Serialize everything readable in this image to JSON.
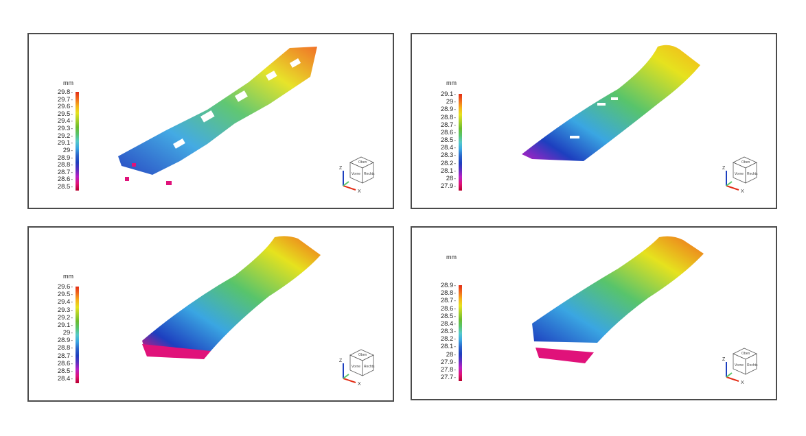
{
  "palette": [
    "#b8002c",
    "#e0127a",
    "#b81fc4",
    "#5a2fc0",
    "#1d3fbf",
    "#2a63c9",
    "#3aa6e2",
    "#55c9c9",
    "#58c46b",
    "#6cbc2d",
    "#a9d02a",
    "#e6e21e",
    "#f5b21a",
    "#f06a1c",
    "#e32d16"
  ],
  "panels": [
    {
      "unit": "mm",
      "ticks": [
        "29.8",
        "29.7",
        "29.6",
        "29.5",
        "29.4",
        "29.3",
        "29.2",
        "29.1",
        "29",
        "28.9",
        "28.8",
        "28.7",
        "28.6",
        "28.5"
      ],
      "nav": {
        "z": "Z",
        "x": "X",
        "top": "Oben",
        "front": "Vorne",
        "right": "Rechts"
      }
    },
    {
      "unit": "mm",
      "ticks": [
        "29.1",
        "29",
        "28.9",
        "28.8",
        "28.7",
        "28.6",
        "28.5",
        "28.4",
        "28.3",
        "28.2",
        "28.1",
        "28",
        "27.9"
      ],
      "nav": {
        "z": "Z",
        "x": "X",
        "top": "Oben",
        "front": "Vorne",
        "right": "Rechts"
      }
    },
    {
      "unit": "mm",
      "ticks": [
        "29.6",
        "29.5",
        "29.4",
        "29.3",
        "29.2",
        "29.1",
        "29",
        "28.9",
        "28.8",
        "28.7",
        "28.6",
        "28.5",
        "28.4"
      ],
      "nav": {
        "z": "Z",
        "x": "X",
        "top": "Oben",
        "front": "Vorne",
        "right": "Rechts"
      }
    },
    {
      "unit": "mm",
      "ticks": [
        "28.9",
        "28.8",
        "28.7",
        "28.6",
        "28.5",
        "28.4",
        "28.3",
        "28.2",
        "28.1",
        "28",
        "27.9",
        "27.8",
        "27.7"
      ],
      "nav": {
        "z": "Z",
        "x": "X",
        "top": "Oben",
        "front": "Vorne",
        "right": "Rechts"
      }
    }
  ]
}
